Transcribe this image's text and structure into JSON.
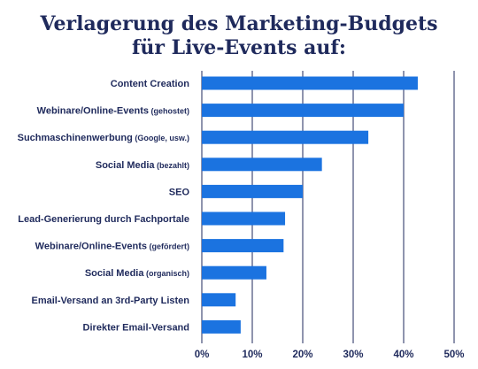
{
  "chart_data": {
    "type": "bar",
    "orientation": "horizontal",
    "title": [
      "Verlagerung des Marketing-Budgets",
      "für Live-Events auf:"
    ],
    "categories": [
      {
        "main": "Content Creation",
        "sub": ""
      },
      {
        "main": "Webinare/Online-Events",
        "sub": "(gehostet)"
      },
      {
        "main": "Suchmaschinenwerbung",
        "sub": "(Google, usw.)"
      },
      {
        "main": "Social Media",
        "sub": "(bezahlt)"
      },
      {
        "main": "SEO",
        "sub": ""
      },
      {
        "main": "Lead-Generierung durch Fachportale",
        "sub": ""
      },
      {
        "main": "Webinare/Online-Events",
        "sub": "(gefördert)"
      },
      {
        "main": "Social Media",
        "sub": "(organisch)"
      },
      {
        "main": "Email-Versand an 3rd-Party Listen",
        "sub": ""
      },
      {
        "main": "Direkter Email-Versand",
        "sub": ""
      }
    ],
    "values": [
      42.8,
      40.0,
      33.0,
      23.8,
      20.0,
      16.5,
      16.2,
      12.8,
      6.7,
      7.7
    ],
    "xlim": [
      0,
      50
    ],
    "xticks": [
      "0%",
      "10%",
      "20%",
      "30%",
      "40%",
      "50%"
    ],
    "xtick_values": [
      0,
      10,
      20,
      30,
      40,
      50
    ],
    "grid": "vertical",
    "colors": {
      "bar": "#1b73e0",
      "grid": "#1f2a5c",
      "text": "#1f2a5c"
    }
  }
}
